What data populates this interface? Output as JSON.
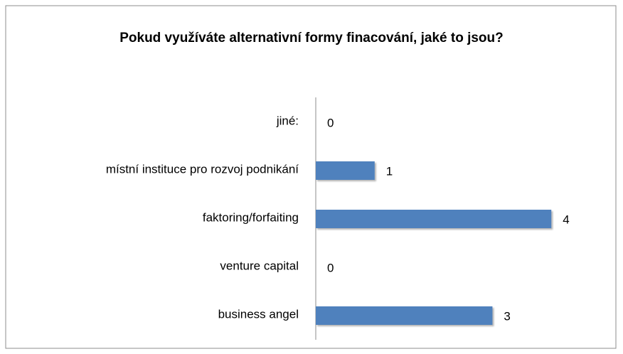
{
  "chart_data": {
    "type": "bar",
    "orientation": "horizontal",
    "title": "Pokud využíváte alternativní formy finacování, jaké to jsou?",
    "categories": [
      "jiné:",
      "místní instituce pro rozvoj podnikání",
      "faktoring/forfaiting",
      "venture capital",
      "business angel"
    ],
    "values": [
      0,
      1,
      4,
      0,
      3
    ],
    "color": "#4f81bd",
    "xlim": [
      0,
      5
    ],
    "grid": false
  }
}
